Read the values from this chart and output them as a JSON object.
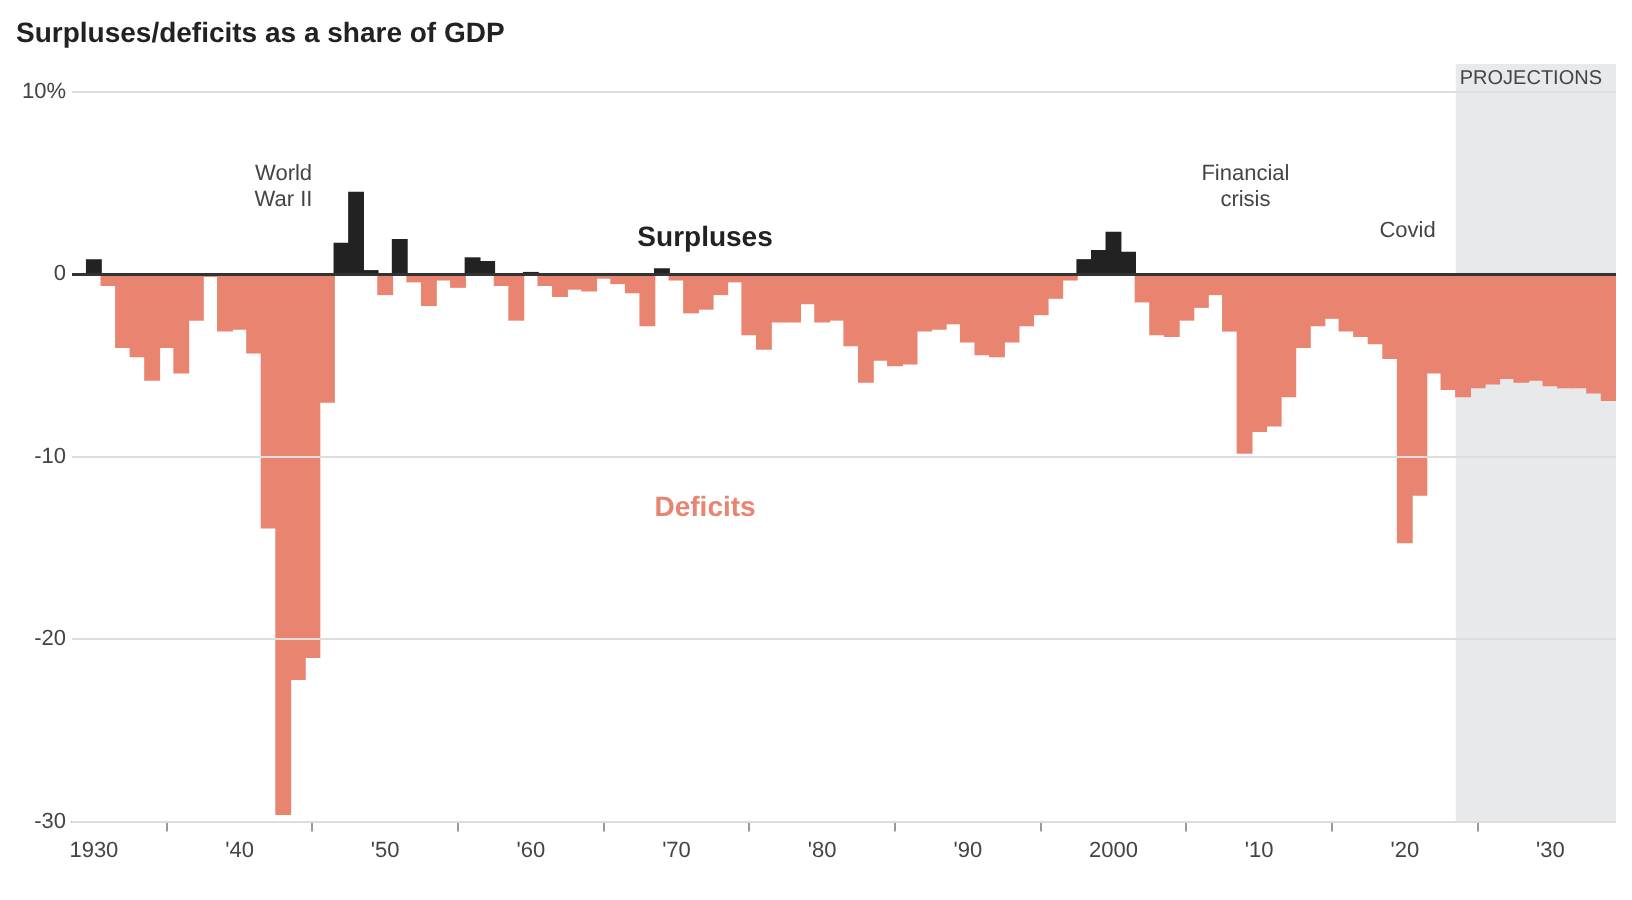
{
  "chart_data": {
    "type": "bar",
    "title": "Surpluses/deficits as a share of GDP",
    "x": [
      1930,
      1931,
      1932,
      1933,
      1934,
      1935,
      1936,
      1937,
      1938,
      1939,
      1940,
      1941,
      1942,
      1943,
      1944,
      1945,
      1946,
      1947,
      1948,
      1949,
      1950,
      1951,
      1952,
      1953,
      1954,
      1955,
      1956,
      1957,
      1958,
      1959,
      1960,
      1961,
      1962,
      1963,
      1964,
      1965,
      1966,
      1967,
      1968,
      1969,
      1970,
      1971,
      1972,
      1973,
      1974,
      1975,
      1976,
      1977,
      1978,
      1979,
      1980,
      1981,
      1982,
      1983,
      1984,
      1985,
      1986,
      1987,
      1988,
      1989,
      1990,
      1991,
      1992,
      1993,
      1994,
      1995,
      1996,
      1997,
      1998,
      1999,
      2000,
      2001,
      2002,
      2003,
      2004,
      2005,
      2006,
      2007,
      2008,
      2009,
      2010,
      2011,
      2012,
      2013,
      2014,
      2015,
      2016,
      2017,
      2018,
      2019,
      2020,
      2021,
      2022,
      2023,
      2024,
      2025,
      2026,
      2027,
      2028,
      2029,
      2030,
      2031,
      2032,
      2033,
      2034
    ],
    "values": [
      0.8,
      -0.6,
      -4.0,
      -4.5,
      -5.8,
      -4.0,
      -5.4,
      -2.5,
      -0.1,
      -3.1,
      -3.0,
      -4.3,
      -13.9,
      -29.6,
      -22.2,
      -21.0,
      -7.0,
      1.7,
      4.5,
      0.2,
      -1.1,
      1.9,
      -0.4,
      -1.7,
      -0.3,
      -0.7,
      0.9,
      0.7,
      -0.6,
      -2.5,
      0.1,
      -0.6,
      -1.2,
      -0.8,
      -0.9,
      -0.2,
      -0.5,
      -1.0,
      -2.8,
      0.3,
      -0.3,
      -2.1,
      -1.9,
      -1.1,
      -0.4,
      -3.3,
      -4.1,
      -2.6,
      -2.6,
      -1.6,
      -2.6,
      -2.5,
      -3.9,
      -5.9,
      -4.7,
      -5.0,
      -4.9,
      -3.1,
      -3.0,
      -2.7,
      -3.7,
      -4.4,
      -4.5,
      -3.7,
      -2.8,
      -2.2,
      -1.3,
      -0.3,
      0.8,
      1.3,
      2.3,
      1.2,
      -1.5,
      -3.3,
      -3.4,
      -2.5,
      -1.8,
      -1.1,
      -3.1,
      -9.8,
      -8.6,
      -8.3,
      -6.7,
      -4.0,
      -2.8,
      -2.4,
      -3.1,
      -3.4,
      -3.8,
      -4.6,
      -14.7,
      -12.1,
      -5.4,
      -6.3,
      -6.7,
      -6.2,
      -6.0,
      -5.7,
      -5.9,
      -5.8,
      -6.1,
      -6.2,
      -6.2,
      -6.5,
      -6.9
    ],
    "colors": [
      "#222222",
      "#e8846f",
      "#e8846f",
      "#e8846f",
      "#e8846f",
      "#e8846f",
      "#e8846f",
      "#e8846f",
      "#e8846f",
      "#e8846f",
      "#e8846f",
      "#e8846f",
      "#e8846f",
      "#e8846f",
      "#e8846f",
      "#e8846f",
      "#e8846f",
      "#222222",
      "#222222",
      "#222222",
      "#e8846f",
      "#222222",
      "#e8846f",
      "#e8846f",
      "#e8846f",
      "#e8846f",
      "#222222",
      "#222222",
      "#e8846f",
      "#e8846f",
      "#222222",
      "#e8846f",
      "#e8846f",
      "#e8846f",
      "#e8846f",
      "#e8846f",
      "#e8846f",
      "#e8846f",
      "#e8846f",
      "#222222",
      "#e8846f",
      "#e8846f",
      "#e8846f",
      "#e8846f",
      "#e8846f",
      "#e8846f",
      "#e8846f",
      "#e8846f",
      "#e8846f",
      "#e8846f",
      "#e8846f",
      "#e8846f",
      "#e8846f",
      "#e8846f",
      "#e8846f",
      "#e8846f",
      "#e8846f",
      "#e8846f",
      "#e8846f",
      "#e8846f",
      "#e8846f",
      "#e8846f",
      "#e8846f",
      "#e8846f",
      "#e8846f",
      "#e8846f",
      "#e8846f",
      "#e8846f",
      "#222222",
      "#222222",
      "#222222",
      "#222222",
      "#e8846f",
      "#e8846f",
      "#e8846f",
      "#e8846f",
      "#e8846f",
      "#e8846f",
      "#e8846f",
      "#e8846f",
      "#e8846f",
      "#e8846f",
      "#e8846f",
      "#e8846f",
      "#e8846f",
      "#e8846f",
      "#e8846f",
      "#e8846f",
      "#e8846f",
      "#e8846f",
      "#e8846f",
      "#e8846f",
      "#e8846f",
      "#e8846f",
      "#e8846f",
      "#e8846f",
      "#e8846f",
      "#e8846f",
      "#e8846f",
      "#e8846f",
      "#e8846f",
      "#e8846f",
      "#e8846f",
      "#e8846f",
      "#e8846f"
    ],
    "xlim": [
      1928.5,
      2034.5
    ],
    "xticks": [
      {
        "value": 1930,
        "label": "1930"
      },
      {
        "value": 1940,
        "label": "'40"
      },
      {
        "value": 1950,
        "label": "'50"
      },
      {
        "value": 1960,
        "label": "'60"
      },
      {
        "value": 1970,
        "label": "'70"
      },
      {
        "value": 1980,
        "label": "'80"
      },
      {
        "value": 1990,
        "label": "'90"
      },
      {
        "value": 2000,
        "label": "2000"
      },
      {
        "value": 2010,
        "label": "'10"
      },
      {
        "value": 2020,
        "label": "'20"
      },
      {
        "value": 2030,
        "label": "'30"
      }
    ],
    "ylim": [
      -30,
      10
    ],
    "yticks": [
      {
        "value": 10,
        "label": "10%"
      },
      0,
      -10,
      -20,
      -30
    ],
    "grid": "y",
    "bands": [
      {
        "axis": "x",
        "from": 2023.5,
        "to": 2034.5,
        "label": "PROJECTIONS",
        "color": "#e8e9eb"
      }
    ],
    "annotations": [
      "World War II",
      "Surpluses",
      "Deficits",
      "Financial crisis",
      "Covid"
    ]
  }
}
